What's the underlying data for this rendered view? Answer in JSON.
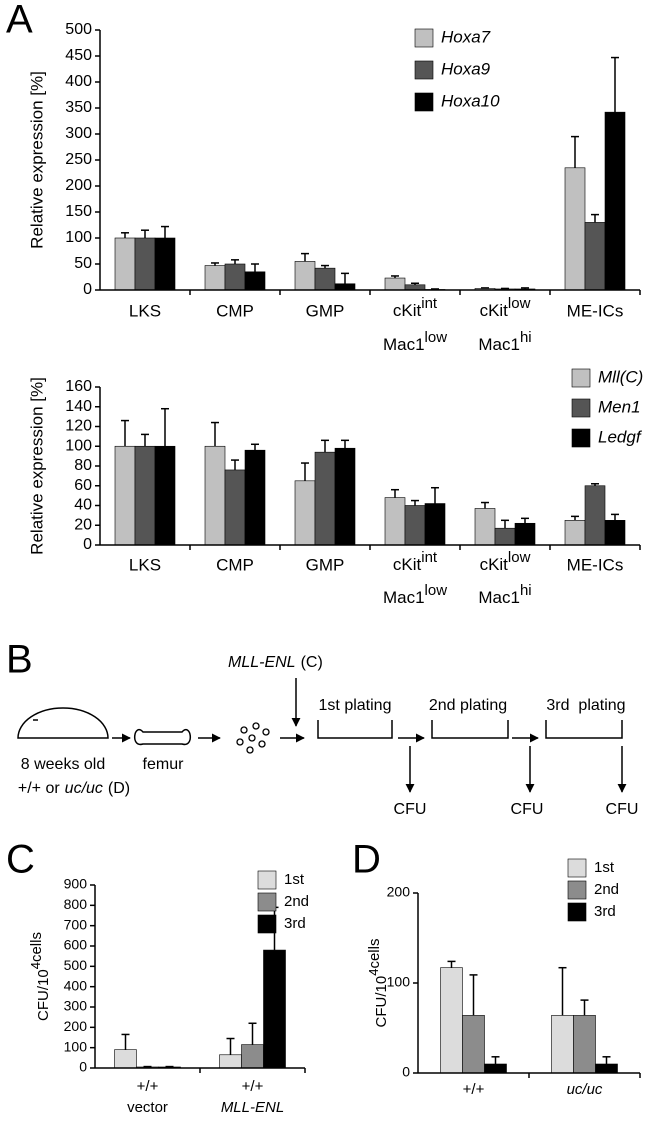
{
  "panels": [
    "A",
    "B",
    "C",
    "D"
  ],
  "chart_data": [
    {
      "type": "bar",
      "y_label": "Relative expression [%]",
      "categories": [
        "LKS",
        "CMP",
        "GMP",
        [
          [
            "cKit",
            "int"
          ],
          [
            "Mac1",
            "low"
          ]
        ],
        [
          [
            "cKit",
            "low"
          ],
          [
            "Mac1",
            "hi"
          ]
        ],
        "ME-ICs"
      ],
      "ylim": [
        0,
        500
      ],
      "yticks": [
        0,
        50,
        100,
        150,
        200,
        250,
        300,
        350,
        400,
        450,
        500
      ],
      "series": [
        {
          "name": "Hoxa7",
          "color": "#c0c0c0",
          "values": [
            100,
            47,
            55,
            23,
            3,
            235
          ],
          "errors": [
            10,
            5,
            15,
            4,
            1,
            60
          ]
        },
        {
          "name": "Hoxa9",
          "color": "#555555",
          "values": [
            100,
            50,
            42,
            10,
            2,
            130
          ],
          "errors": [
            15,
            8,
            5,
            3,
            1,
            15
          ]
        },
        {
          "name": "Hoxa10",
          "color": "#000000",
          "values": [
            100,
            35,
            12,
            1,
            2,
            342
          ],
          "errors": [
            22,
            15,
            20,
            1,
            2,
            105
          ]
        }
      ]
    },
    {
      "type": "bar",
      "y_label": "Relative expression [%]",
      "categories": [
        "LKS",
        "CMP",
        "GMP",
        [
          [
            "cKit",
            "int"
          ],
          [
            "Mac1",
            "low"
          ]
        ],
        [
          [
            "cKit",
            "low"
          ],
          [
            "Mac1",
            "hi"
          ]
        ],
        "ME-ICs"
      ],
      "ylim": [
        0,
        160
      ],
      "yticks": [
        0,
        20,
        40,
        60,
        80,
        100,
        120,
        140,
        160
      ],
      "series": [
        {
          "name": "Mll(C)",
          "color": "#c0c0c0",
          "values": [
            100,
            100,
            65,
            48,
            37,
            25
          ],
          "errors": [
            26,
            24,
            18,
            8,
            6,
            4
          ]
        },
        {
          "name": "Men1",
          "color": "#555555",
          "values": [
            100,
            76,
            94,
            40,
            17,
            60
          ],
          "errors": [
            12,
            10,
            12,
            5,
            8,
            2
          ]
        },
        {
          "name": "Ledgf",
          "color": "#000000",
          "values": [
            100,
            96,
            98,
            42,
            22,
            25
          ],
          "errors": [
            38,
            6,
            8,
            16,
            5,
            6
          ]
        }
      ]
    },
    {
      "type": "bar",
      "y_label": [
        "CFU/10",
        "4",
        "cells"
      ],
      "categories": [
        [
          "+/+",
          "vector"
        ],
        [
          "+/+",
          "MLL-ENL"
        ]
      ],
      "ylim": [
        0,
        900
      ],
      "yticks": [
        0,
        100,
        200,
        300,
        400,
        500,
        600,
        700,
        800,
        900
      ],
      "series": [
        {
          "name": "1st",
          "color": "#dcdcdc",
          "values": [
            90,
            65
          ],
          "errors": [
            75,
            80
          ]
        },
        {
          "name": "2nd",
          "color": "#8c8c8c",
          "values": [
            5,
            115
          ],
          "errors": [
            2,
            105
          ]
        },
        {
          "name": "3rd",
          "color": "#000000",
          "values": [
            5,
            580
          ],
          "errors": [
            2,
            210
          ]
        }
      ]
    },
    {
      "type": "bar",
      "y_label": [
        "CFU/10",
        "4",
        "cells"
      ],
      "categories": [
        "+/+",
        "uc/uc"
      ],
      "ylim": [
        0,
        200
      ],
      "yticks": [
        0,
        100,
        200
      ],
      "series": [
        {
          "name": "1st",
          "color": "#dcdcdc",
          "values": [
            117,
            64
          ],
          "errors": [
            7,
            53
          ]
        },
        {
          "name": "2nd",
          "color": "#8c8c8c",
          "values": [
            64,
            64
          ],
          "errors": [
            45,
            17
          ]
        },
        {
          "name": "3rd",
          "color": "#000000",
          "values": [
            10,
            10
          ],
          "errors": [
            8,
            8
          ]
        }
      ]
    }
  ],
  "diagram": {
    "transduction": [
      "MLL-ENL",
      "(C)"
    ],
    "mouse": [
      "8 weeks old",
      "+/+ or",
      "uc/uc",
      "(D)"
    ],
    "bone": "femur",
    "platings": [
      "1st plating",
      "2nd plating",
      "3rd  plating"
    ],
    "readouts": [
      "CFU",
      "CFU",
      "CFU"
    ]
  }
}
